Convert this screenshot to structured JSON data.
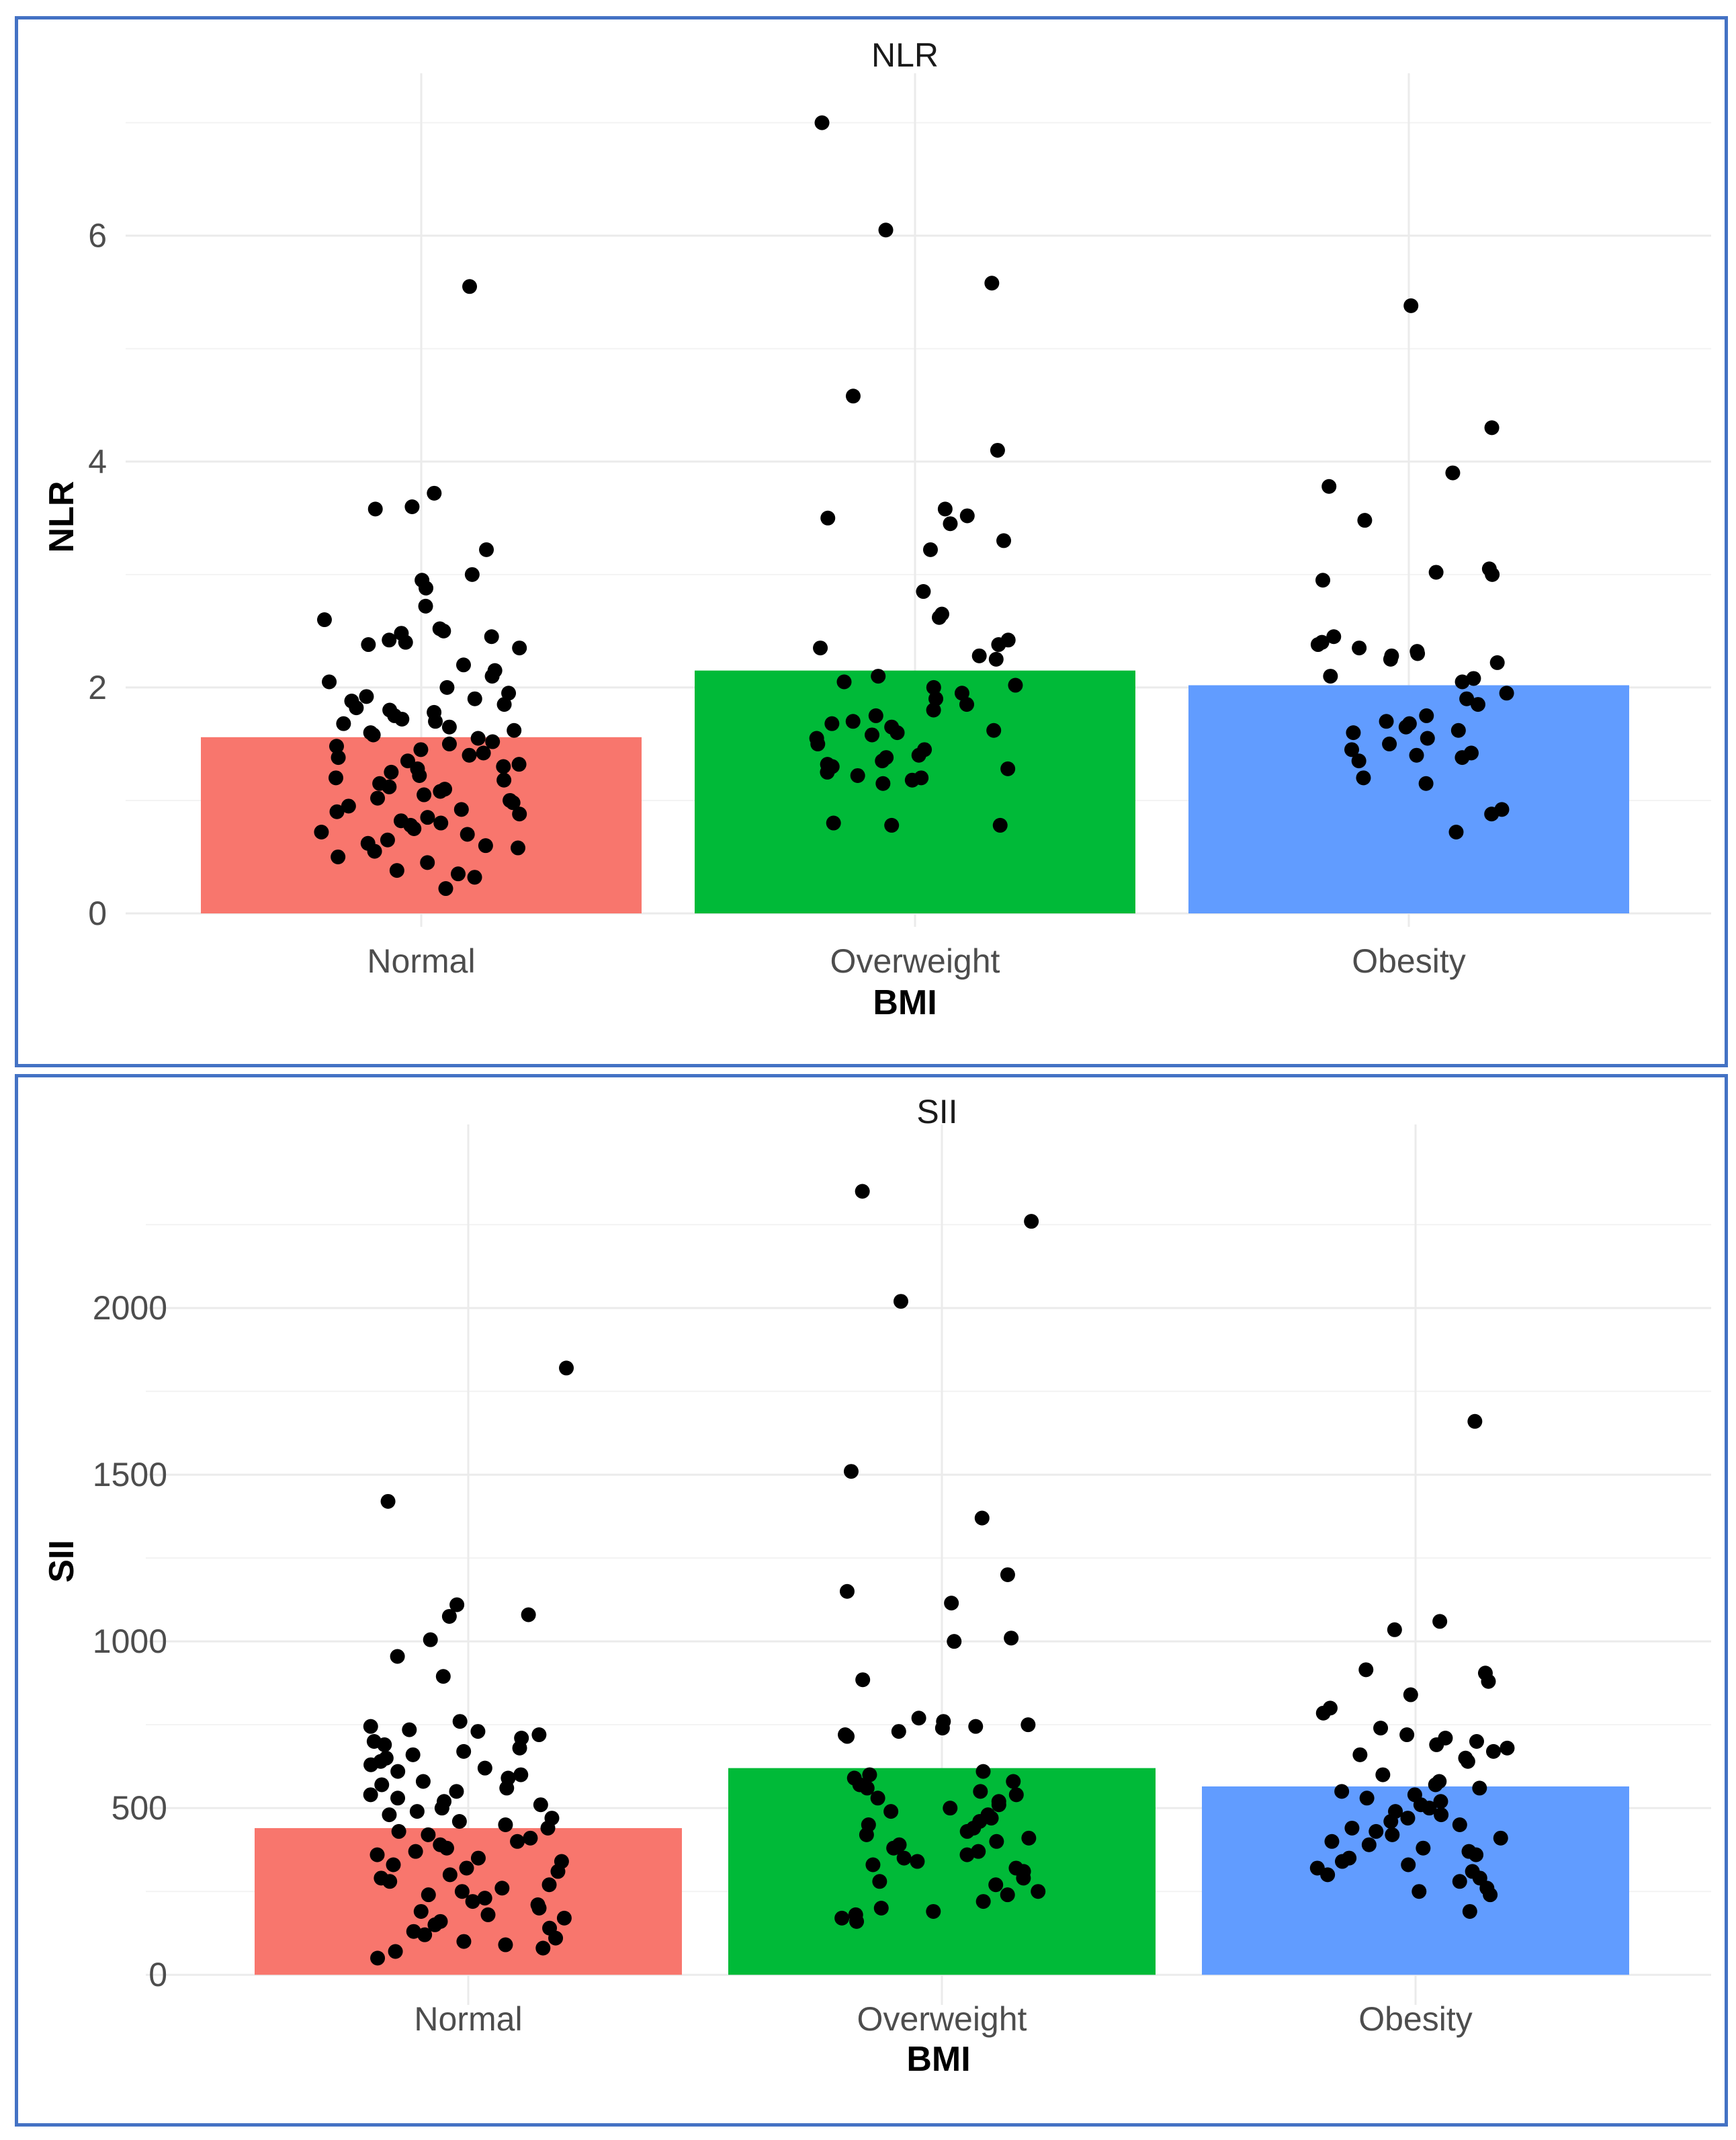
{
  "chart_data": [
    {
      "type": "bar",
      "title": "NLR",
      "xlabel": "BMI",
      "ylabel": "NLR",
      "categories": [
        "Normal",
        "Overweight",
        "Obesity"
      ],
      "values": [
        1.56,
        2.15,
        2.02
      ],
      "colors": [
        "#f8766d",
        "#00ba38",
        "#619cff"
      ],
      "ylim": [
        0,
        7.2
      ],
      "yticks": [
        0,
        2,
        4,
        6
      ],
      "ytick_labels": [
        "0",
        "2",
        "4",
        "6"
      ],
      "grid": true,
      "points": {
        "Normal": [
          5.55,
          3.72,
          3.6,
          3.58,
          3.22,
          3.0,
          2.95,
          2.88,
          2.72,
          2.6,
          2.52,
          2.5,
          2.48,
          2.45,
          2.42,
          2.4,
          2.38,
          2.35,
          2.2,
          2.15,
          2.1,
          2.05,
          2.0,
          1.95,
          1.92,
          1.9,
          1.88,
          1.85,
          1.82,
          1.8,
          1.78,
          1.75,
          1.72,
          1.7,
          1.68,
          1.65,
          1.62,
          1.6,
          1.58,
          1.55,
          1.52,
          1.5,
          1.48,
          1.45,
          1.42,
          1.4,
          1.38,
          1.35,
          1.32,
          1.3,
          1.28,
          1.25,
          1.22,
          1.2,
          1.18,
          1.15,
          1.12,
          1.1,
          1.08,
          1.05,
          1.02,
          1.0,
          0.98,
          0.95,
          0.92,
          0.9,
          0.88,
          0.85,
          0.82,
          0.8,
          0.78,
          0.75,
          0.72,
          0.7,
          0.65,
          0.62,
          0.6,
          0.58,
          0.55,
          0.5,
          0.45,
          0.38,
          0.35,
          0.32,
          0.22
        ],
        "Overweight": [
          7.0,
          6.05,
          5.58,
          4.58,
          4.1,
          3.58,
          3.52,
          3.5,
          3.45,
          3.3,
          3.22,
          2.85,
          2.65,
          2.62,
          2.42,
          2.38,
          2.35,
          2.28,
          2.25,
          2.1,
          2.05,
          2.02,
          2.0,
          1.95,
          1.9,
          1.85,
          1.8,
          1.75,
          1.7,
          1.68,
          1.65,
          1.62,
          1.6,
          1.58,
          1.55,
          1.5,
          1.45,
          1.4,
          1.38,
          1.35,
          1.32,
          1.3,
          1.28,
          1.25,
          1.22,
          1.2,
          1.18,
          1.15,
          0.8,
          0.78,
          0.78
        ],
        "Obesity": [
          5.38,
          4.3,
          3.9,
          3.78,
          3.48,
          3.05,
          3.02,
          3.0,
          2.95,
          2.45,
          2.4,
          2.38,
          2.35,
          2.32,
          2.3,
          2.28,
          2.25,
          2.22,
          2.1,
          2.08,
          2.05,
          1.95,
          1.9,
          1.85,
          1.75,
          1.7,
          1.68,
          1.65,
          1.62,
          1.6,
          1.55,
          1.5,
          1.45,
          1.42,
          1.4,
          1.38,
          1.35,
          1.2,
          1.15,
          0.92,
          0.88,
          0.72
        ]
      }
    },
    {
      "type": "bar",
      "title": "SII",
      "xlabel": "BMI",
      "ylabel": "SII",
      "categories": [
        "Normal",
        "Overweight",
        "Obesity"
      ],
      "values": [
        440,
        620,
        565
      ],
      "colors": [
        "#f8766d",
        "#00ba38",
        "#619cff"
      ],
      "ylim": [
        -50,
        2470
      ],
      "yticks": [
        0,
        500,
        1000,
        1500,
        2000
      ],
      "ytick_labels": [
        "0",
        "500",
        "1000",
        "1500",
        "2000"
      ],
      "grid": true,
      "points": {
        "Normal": [
          1820,
          1420,
          1110,
          1080,
          1075,
          1005,
          955,
          895,
          760,
          745,
          735,
          730,
          720,
          710,
          700,
          690,
          680,
          670,
          660,
          650,
          640,
          630,
          620,
          610,
          600,
          590,
          580,
          570,
          560,
          550,
          540,
          530,
          520,
          510,
          500,
          490,
          480,
          470,
          460,
          450,
          440,
          430,
          420,
          410,
          400,
          390,
          380,
          370,
          360,
          350,
          340,
          330,
          320,
          310,
          300,
          290,
          280,
          270,
          260,
          250,
          240,
          230,
          220,
          210,
          200,
          190,
          180,
          170,
          160,
          150,
          140,
          130,
          120,
          110,
          100,
          90,
          80,
          70,
          50
        ],
        "Overweight": [
          2350,
          2260,
          2020,
          1510,
          1370,
          1200,
          1150,
          1115,
          1010,
          1000,
          885,
          770,
          760,
          750,
          745,
          740,
          730,
          720,
          715,
          610,
          600,
          590,
          580,
          570,
          560,
          550,
          540,
          530,
          520,
          510,
          500,
          490,
          480,
          470,
          460,
          450,
          440,
          430,
          420,
          410,
          400,
          390,
          380,
          370,
          360,
          350,
          340,
          330,
          320,
          310,
          290,
          280,
          270,
          250,
          240,
          220,
          200,
          190,
          180,
          170,
          160
        ],
        "Obesity": [
          1660,
          1060,
          1035,
          915,
          905,
          880,
          840,
          800,
          785,
          740,
          720,
          710,
          700,
          690,
          680,
          670,
          660,
          650,
          640,
          600,
          580,
          570,
          560,
          550,
          540,
          530,
          520,
          510,
          500,
          490,
          480,
          470,
          460,
          450,
          440,
          430,
          420,
          410,
          400,
          390,
          380,
          370,
          360,
          350,
          340,
          330,
          320,
          310,
          300,
          290,
          280,
          260,
          250,
          240,
          190
        ]
      }
    }
  ]
}
